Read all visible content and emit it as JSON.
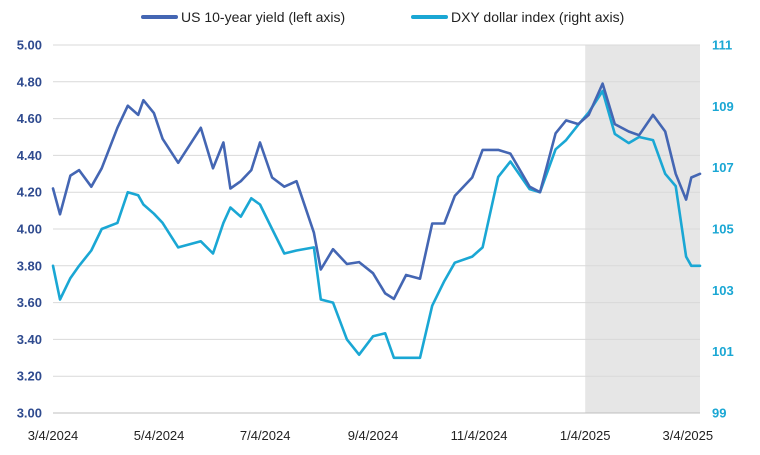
{
  "chart_data": {
    "type": "line",
    "title": "",
    "legend": {
      "placement": "top",
      "entries": [
        "US 10-year yield (left axis)",
        "DXY dollar index (right axis)"
      ]
    },
    "x_tick_labels": [
      "3/4/2024",
      "5/4/2024",
      "7/4/2024",
      "9/4/2024",
      "11/4/2024",
      "1/4/2025",
      "3/4/2025"
    ],
    "x_range": [
      "3/4/2024",
      "3/11/2025"
    ],
    "y_left": {
      "range": [
        3.0,
        5.0
      ],
      "tick_labels": [
        "3.00",
        "3.20",
        "3.40",
        "3.60",
        "3.80",
        "4.00",
        "4.20",
        "4.40",
        "4.60",
        "4.80",
        "5.00"
      ]
    },
    "y_right": {
      "range": [
        99,
        111
      ],
      "tick_labels": [
        "99",
        "101",
        "103",
        "105",
        "107",
        "109",
        "111"
      ]
    },
    "grid": "horizontal",
    "shaded_region": {
      "start": "1/4/2025",
      "end": "3/11/2025",
      "color": "#e6e6e6"
    },
    "series": [
      {
        "name": "US 10-year yield (left axis)",
        "axis": "left",
        "color": "#4466b3",
        "points": [
          [
            "3/4/2024",
            4.22
          ],
          [
            "3/8/2024",
            4.08
          ],
          [
            "3/14/2024",
            4.29
          ],
          [
            "3/19/2024",
            4.32
          ],
          [
            "3/26/2024",
            4.23
          ],
          [
            "4/1/2024",
            4.33
          ],
          [
            "4/10/2024",
            4.55
          ],
          [
            "4/16/2024",
            4.67
          ],
          [
            "4/22/2024",
            4.62
          ],
          [
            "4/25/2024",
            4.7
          ],
          [
            "5/1/2024",
            4.63
          ],
          [
            "5/6/2024",
            4.49
          ],
          [
            "5/15/2024",
            4.36
          ],
          [
            "5/28/2024",
            4.55
          ],
          [
            "6/4/2024",
            4.33
          ],
          [
            "6/10/2024",
            4.47
          ],
          [
            "6/14/2024",
            4.22
          ],
          [
            "6/20/2024",
            4.26
          ],
          [
            "6/26/2024",
            4.32
          ],
          [
            "7/1/2024",
            4.47
          ],
          [
            "7/8/2024",
            4.28
          ],
          [
            "7/15/2024",
            4.23
          ],
          [
            "7/22/2024",
            4.26
          ],
          [
            "8/1/2024",
            3.98
          ],
          [
            "8/5/2024",
            3.78
          ],
          [
            "8/12/2024",
            3.89
          ],
          [
            "8/20/2024",
            3.81
          ],
          [
            "8/27/2024",
            3.82
          ],
          [
            "9/4/2024",
            3.76
          ],
          [
            "9/11/2024",
            3.65
          ],
          [
            "9/16/2024",
            3.62
          ],
          [
            "9/23/2024",
            3.75
          ],
          [
            "10/1/2024",
            3.73
          ],
          [
            "10/8/2024",
            4.03
          ],
          [
            "10/15/2024",
            4.03
          ],
          [
            "10/21/2024",
            4.18
          ],
          [
            "10/31/2024",
            4.28
          ],
          [
            "11/6/2024",
            4.43
          ],
          [
            "11/15/2024",
            4.43
          ],
          [
            "11/22/2024",
            4.41
          ],
          [
            "12/3/2024",
            4.23
          ],
          [
            "12/9/2024",
            4.2
          ],
          [
            "12/18/2024",
            4.52
          ],
          [
            "12/24/2024",
            4.59
          ],
          [
            "12/31/2024",
            4.57
          ],
          [
            "1/6/2025",
            4.62
          ],
          [
            "1/14/2025",
            4.79
          ],
          [
            "1/21/2025",
            4.57
          ],
          [
            "1/29/2025",
            4.53
          ],
          [
            "2/4/2025",
            4.51
          ],
          [
            "2/12/2025",
            4.62
          ],
          [
            "2/19/2025",
            4.53
          ],
          [
            "2/25/2025",
            4.3
          ],
          [
            "3/3/2025",
            4.16
          ],
          [
            "3/6/2025",
            4.28
          ],
          [
            "3/11/2025",
            4.3
          ]
        ]
      },
      {
        "name": "DXY dollar index (right axis)",
        "axis": "right",
        "color": "#1aa7d4",
        "points": [
          [
            "3/4/2024",
            103.8
          ],
          [
            "3/8/2024",
            102.7
          ],
          [
            "3/14/2024",
            103.4
          ],
          [
            "3/19/2024",
            103.8
          ],
          [
            "3/26/2024",
            104.3
          ],
          [
            "4/1/2024",
            105.0
          ],
          [
            "4/10/2024",
            105.2
          ],
          [
            "4/16/2024",
            106.2
          ],
          [
            "4/22/2024",
            106.1
          ],
          [
            "4/25/2024",
            105.8
          ],
          [
            "5/1/2024",
            105.5
          ],
          [
            "5/6/2024",
            105.2
          ],
          [
            "5/15/2024",
            104.4
          ],
          [
            "5/28/2024",
            104.6
          ],
          [
            "6/4/2024",
            104.2
          ],
          [
            "6/10/2024",
            105.2
          ],
          [
            "6/14/2024",
            105.7
          ],
          [
            "6/20/2024",
            105.4
          ],
          [
            "6/26/2024",
            106.0
          ],
          [
            "7/1/2024",
            105.8
          ],
          [
            "7/8/2024",
            105.0
          ],
          [
            "7/15/2024",
            104.2
          ],
          [
            "7/22/2024",
            104.3
          ],
          [
            "8/1/2024",
            104.4
          ],
          [
            "8/5/2024",
            102.7
          ],
          [
            "8/12/2024",
            102.6
          ],
          [
            "8/20/2024",
            101.4
          ],
          [
            "8/27/2024",
            100.9
          ],
          [
            "9/4/2024",
            101.5
          ],
          [
            "9/11/2024",
            101.6
          ],
          [
            "9/16/2024",
            100.8
          ],
          [
            "9/23/2024",
            100.8
          ],
          [
            "10/1/2024",
            100.8
          ],
          [
            "10/8/2024",
            102.5
          ],
          [
            "10/15/2024",
            103.3
          ],
          [
            "10/21/2024",
            103.9
          ],
          [
            "10/31/2024",
            104.1
          ],
          [
            "11/6/2024",
            104.4
          ],
          [
            "11/15/2024",
            106.7
          ],
          [
            "11/22/2024",
            107.2
          ],
          [
            "12/3/2024",
            106.3
          ],
          [
            "12/9/2024",
            106.2
          ],
          [
            "12/18/2024",
            107.6
          ],
          [
            "12/24/2024",
            107.9
          ],
          [
            "12/31/2024",
            108.4
          ],
          [
            "1/6/2025",
            108.8
          ],
          [
            "1/14/2025",
            109.5
          ],
          [
            "1/21/2025",
            108.1
          ],
          [
            "1/29/2025",
            107.8
          ],
          [
            "2/4/2025",
            108.0
          ],
          [
            "2/12/2025",
            107.9
          ],
          [
            "2/19/2025",
            106.8
          ],
          [
            "2/25/2025",
            106.4
          ],
          [
            "3/3/2025",
            104.1
          ],
          [
            "3/6/2025",
            103.8
          ],
          [
            "3/11/2025",
            103.8
          ]
        ]
      }
    ]
  }
}
